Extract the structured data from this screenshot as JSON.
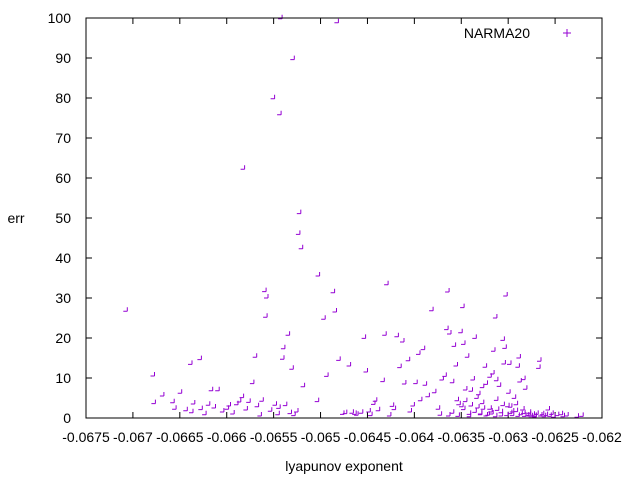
{
  "chart_data": {
    "type": "scatter",
    "xlabel": "lyapunov exponent",
    "ylabel": "err",
    "xlim": [
      -0.0675,
      -0.062
    ],
    "ylim": [
      0,
      100
    ],
    "xticks": [
      -0.0675,
      -0.067,
      -0.0665,
      -0.066,
      -0.0655,
      -0.065,
      -0.0645,
      -0.064,
      -0.0635,
      -0.063,
      -0.0625,
      -0.062
    ],
    "xtick_labels": [
      "-0.0675",
      "-0.067",
      "-0.0665",
      "-0.066",
      "-0.0655",
      "-0.065",
      "-0.0645",
      "-0.064",
      "-0.0635",
      "-0.063",
      "-0.0625",
      "-0.062"
    ],
    "yticks": [
      0,
      10,
      20,
      30,
      40,
      50,
      60,
      70,
      80,
      90,
      100
    ],
    "ytick_labels": [
      "0",
      "10",
      "20",
      "30",
      "40",
      "50",
      "60",
      "70",
      "80",
      "90",
      "100"
    ],
    "grid": false,
    "legend_position": "top-right",
    "marker": "+",
    "series": [
      {
        "name": "NARMA20",
        "color": "#9400d3",
        "points": [
          [
            -0.06706,
            26.7
          ],
          [
            -0.06677,
            10.5
          ],
          [
            -0.06676,
            3.6
          ],
          [
            -0.06667,
            5.5
          ],
          [
            -0.06656,
            3.8
          ],
          [
            -0.06654,
            2.2
          ],
          [
            -0.06648,
            6.2
          ],
          [
            -0.06642,
            1.8
          ],
          [
            -0.06637,
            13.4
          ],
          [
            -0.06636,
            1.3
          ],
          [
            -0.06634,
            3.5
          ],
          [
            -0.06627,
            14.6
          ],
          [
            -0.06626,
            2.1
          ],
          [
            -0.06622,
            0.8
          ],
          [
            -0.06618,
            3.2
          ],
          [
            -0.06615,
            6.8
          ],
          [
            -0.06612,
            2.5
          ],
          [
            -0.06608,
            6.8
          ],
          [
            -0.06603,
            1.5
          ],
          [
            -0.06598,
            2.2
          ],
          [
            -0.06596,
            3.0
          ],
          [
            -0.06592,
            1.0
          ],
          [
            -0.06588,
            3.3
          ],
          [
            -0.06585,
            4.0
          ],
          [
            -0.06582,
            5.1
          ],
          [
            -0.06581,
            62.2
          ],
          [
            -0.06578,
            2.0
          ],
          [
            -0.06575,
            3.9
          ],
          [
            -0.06571,
            8.6
          ],
          [
            -0.06568,
            15.2
          ],
          [
            -0.06566,
            2.8
          ],
          [
            -0.06563,
            0.5
          ],
          [
            -0.06561,
            4.2
          ],
          [
            -0.06558,
            31.6
          ],
          [
            -0.06557,
            25.2
          ],
          [
            -0.06556,
            30.0
          ],
          [
            -0.06552,
            1.7
          ],
          [
            -0.06549,
            79.8
          ],
          [
            -0.06547,
            3.2
          ],
          [
            -0.06544,
            0.8
          ],
          [
            -0.06543,
            2.4
          ],
          [
            -0.06542,
            75.8
          ],
          [
            -0.06541,
            99.8
          ],
          [
            -0.06539,
            14.7
          ],
          [
            -0.06538,
            17.3
          ],
          [
            -0.06536,
            3.1
          ],
          [
            -0.06533,
            20.7
          ],
          [
            -0.06531,
            1.1
          ],
          [
            -0.06529,
            12.2
          ],
          [
            -0.06528,
            89.6
          ],
          [
            -0.06527,
            0.6
          ],
          [
            -0.06524,
            1.5
          ],
          [
            -0.06522,
            45.9
          ],
          [
            -0.06521,
            51.1
          ],
          [
            -0.06519,
            42.3
          ],
          [
            -0.06517,
            7.8
          ],
          [
            -0.06502,
            4.1
          ],
          [
            -0.06501,
            35.5
          ],
          [
            -0.06495,
            24.7
          ],
          [
            -0.06492,
            10.4
          ],
          [
            -0.06485,
            31.3
          ],
          [
            -0.06483,
            26.5
          ],
          [
            -0.06481,
            98.8
          ],
          [
            -0.06479,
            14.4
          ],
          [
            -0.06475,
            0.9
          ],
          [
            -0.06472,
            1.1
          ],
          [
            -0.06468,
            13.0
          ],
          [
            -0.06465,
            1.2
          ],
          [
            -0.06462,
            0.9
          ],
          [
            -0.0646,
            0.7
          ],
          [
            -0.06455,
            1.2
          ],
          [
            -0.06452,
            19.9
          ],
          [
            -0.0645,
            11.5
          ],
          [
            -0.06447,
            1.5
          ],
          [
            -0.06445,
            0.6
          ],
          [
            -0.06442,
            3.4
          ],
          [
            -0.0644,
            4.2
          ],
          [
            -0.06437,
            1.8
          ],
          [
            -0.06432,
            9.1
          ],
          [
            -0.0643,
            20.7
          ],
          [
            -0.06428,
            33.3
          ],
          [
            -0.06425,
            0.5
          ],
          [
            -0.06422,
            2.9
          ],
          [
            -0.0642,
            2.1
          ],
          [
            -0.06417,
            20.3
          ],
          [
            -0.06414,
            12.6
          ],
          [
            -0.06411,
            19.0
          ],
          [
            -0.06409,
            8.5
          ],
          [
            -0.06405,
            14.3
          ],
          [
            -0.06403,
            1.5
          ],
          [
            -0.064,
            3.0
          ],
          [
            -0.06397,
            8.6
          ],
          [
            -0.06394,
            15.9
          ],
          [
            -0.06392,
            4.3
          ],
          [
            -0.06389,
            17.1
          ],
          [
            -0.06387,
            8.2
          ],
          [
            -0.06384,
            5.3
          ],
          [
            -0.0638,
            26.8
          ],
          [
            -0.06377,
            6.3
          ],
          [
            -0.06373,
            2.2
          ],
          [
            -0.06371,
            0.7
          ],
          [
            -0.06369,
            9.5
          ],
          [
            -0.06366,
            10.4
          ],
          [
            -0.06364,
            22.1
          ],
          [
            -0.06363,
            31.5
          ],
          [
            -0.06361,
            21.0
          ],
          [
            -0.06358,
            8.8
          ],
          [
            -0.06356,
            17.9
          ],
          [
            -0.06354,
            13.0
          ],
          [
            -0.06353,
            4.3
          ],
          [
            -0.06351,
            3.3
          ],
          [
            -0.06349,
            21.3
          ],
          [
            -0.06348,
            2.8
          ],
          [
            -0.06347,
            27.6
          ],
          [
            -0.06346,
            18.4
          ],
          [
            -0.06344,
            7.0
          ],
          [
            -0.06342,
            15.2
          ],
          [
            -0.0634,
            0.9
          ],
          [
            -0.06338,
            6.7
          ],
          [
            -0.06336,
            9.5
          ],
          [
            -0.06334,
            19.9
          ],
          [
            -0.06332,
            4.9
          ],
          [
            -0.0633,
            5.8
          ],
          [
            -0.06328,
            1.0
          ],
          [
            -0.06326,
            7.6
          ],
          [
            -0.06325,
            2.2
          ],
          [
            -0.06323,
            12.7
          ],
          [
            -0.06322,
            8.4
          ],
          [
            -0.0632,
            0.7
          ],
          [
            -0.06318,
            10.2
          ],
          [
            -0.06317,
            1.5
          ],
          [
            -0.06315,
            11.0
          ],
          [
            -0.06314,
            16.7
          ],
          [
            -0.06312,
            25.0
          ],
          [
            -0.06311,
            9.3
          ],
          [
            -0.0631,
            1.9
          ],
          [
            -0.06308,
            7.9
          ],
          [
            -0.06306,
            0.5
          ],
          [
            -0.06304,
            19.4
          ],
          [
            -0.06303,
            13.5
          ],
          [
            -0.06302,
            17.4
          ],
          [
            -0.06301,
            30.5
          ],
          [
            -0.06299,
            2.8
          ],
          [
            -0.06298,
            6.2
          ],
          [
            -0.06297,
            13.4
          ],
          [
            -0.06296,
            1.1
          ],
          [
            -0.06294,
            0.6
          ],
          [
            -0.06292,
            4.9
          ],
          [
            -0.0629,
            1.6
          ],
          [
            -0.06288,
            12.7
          ],
          [
            -0.06287,
            15.0
          ],
          [
            -0.06286,
            9.0
          ],
          [
            -0.06285,
            0.8
          ],
          [
            -0.06283,
            2.0
          ],
          [
            -0.06282,
            9.6
          ],
          [
            -0.06281,
            0.4
          ],
          [
            -0.0628,
            7.2
          ],
          [
            -0.06278,
            0.5
          ],
          [
            -0.06276,
            1.2
          ],
          [
            -0.06274,
            0.3
          ],
          [
            -0.06272,
            0.7
          ],
          [
            -0.0627,
            0.4
          ],
          [
            -0.06268,
            0.9
          ],
          [
            -0.06266,
            12.4
          ],
          [
            -0.06265,
            14.2
          ],
          [
            -0.06264,
            0.5
          ],
          [
            -0.06262,
            0.8
          ],
          [
            -0.0626,
            0.3
          ],
          [
            -0.06258,
            0.6
          ],
          [
            -0.06256,
            2.0
          ],
          [
            -0.06254,
            0.4
          ],
          [
            -0.06252,
            0.9
          ],
          [
            -0.0625,
            0.2
          ],
          [
            -0.06246,
            0.6
          ],
          [
            -0.06242,
            0.8
          ],
          [
            -0.0624,
            0.3
          ],
          [
            -0.06236,
            0.5
          ],
          [
            -0.06225,
            0.2
          ],
          [
            -0.0622,
            0.4
          ],
          [
            -0.06362,
            0.5
          ],
          [
            -0.06358,
            1.2
          ],
          [
            -0.06352,
            0.4
          ],
          [
            -0.06346,
            2.1
          ],
          [
            -0.0634,
            0.3
          ],
          [
            -0.06334,
            1.4
          ],
          [
            -0.06328,
            0.8
          ],
          [
            -0.06322,
            0.5
          ],
          [
            -0.06316,
            1.0
          ],
          [
            -0.06312,
            0.3
          ],
          [
            -0.06306,
            1.3
          ],
          [
            -0.063,
            0.6
          ],
          [
            -0.06294,
            1.5
          ],
          [
            -0.06288,
            0.4
          ],
          [
            -0.06282,
            1.1
          ],
          [
            -0.06276,
            0.7
          ],
          [
            -0.0627,
            0.2
          ],
          [
            -0.06344,
            4.1
          ],
          [
            -0.06338,
            3.0
          ],
          [
            -0.06331,
            2.5
          ],
          [
            -0.06326,
            3.6
          ],
          [
            -0.06318,
            2.2
          ],
          [
            -0.06311,
            4.4
          ],
          [
            -0.06304,
            3.1
          ],
          [
            -0.06296,
            2.7
          ],
          [
            -0.0629,
            3.3
          ]
        ]
      }
    ]
  }
}
